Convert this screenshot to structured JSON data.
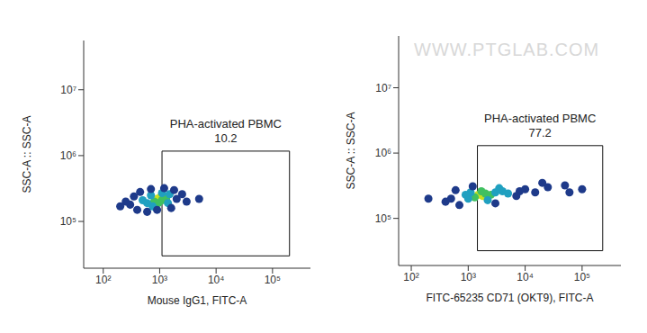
{
  "chart_data": [
    {
      "type": "scatter",
      "log": true,
      "xlabel": "Mouse IgG1, FITC-A",
      "ylabel": "SSC-A :: SSC-A",
      "xlim": [
        45,
        470000
      ],
      "ylim": [
        19500,
        56000000
      ],
      "xticks": [
        {
          "value": 100,
          "label": "10²"
        },
        {
          "value": 1000,
          "label": "10³"
        },
        {
          "value": 10000,
          "label": "10⁴"
        },
        {
          "value": 100000,
          "label": "10⁵"
        }
      ],
      "yticks": [
        {
          "value": 100000,
          "label": "10⁵"
        },
        {
          "value": 1000000,
          "label": "10⁶"
        },
        {
          "value": 10000000,
          "label": "10⁷"
        }
      ],
      "x": [
        900,
        1000,
        1100,
        800,
        1200,
        950,
        1300,
        600,
        700,
        1500,
        1400,
        750,
        1100,
        500,
        300,
        400,
        350,
        450,
        2000,
        2500,
        1800,
        600,
        900,
        1600,
        250,
        3000,
        1200,
        700,
        200,
        5000
      ],
      "values": [
        220000,
        230000,
        210000,
        200000,
        240000,
        190000,
        220000,
        190000,
        250000,
        260000,
        190000,
        170000,
        270000,
        210000,
        180000,
        150000,
        240000,
        280000,
        220000,
        260000,
        300000,
        140000,
        150000,
        160000,
        200000,
        200000,
        320000,
        310000,
        170000,
        220000
      ],
      "colors": [
        "#c8e020",
        "#c8e020",
        "#40c060",
        "#40c060",
        "#40c060",
        "#40c060",
        "#40c060",
        "#20a0c0",
        "#20a0c0",
        "#20a0c0",
        "#20a0c0",
        "#20a0c0",
        "#20a0c0",
        "#20a0c0",
        "#1e3a8a",
        "#1e3a8a",
        "#1e3a8a",
        "#1e3a8a",
        "#1e3a8a",
        "#1e3a8a",
        "#1e3a8a",
        "#1e3a8a",
        "#1e3a8a",
        "#1e3a8a",
        "#1e3a8a",
        "#1e3a8a",
        "#1e3a8a",
        "#1e3a8a",
        "#1e3a8a",
        "#1e3a8a"
      ],
      "gate": {
        "x": [
          1100,
          200000
        ],
        "y": [
          30000,
          1170000
        ],
        "label": "PHA-activated PBMC",
        "value": 10.2
      }
    },
    {
      "type": "scatter",
      "log": true,
      "xlabel": "FITC-65235 CD71 (OKT9), FITC-A",
      "ylabel": "SSC-A :: SSC-A",
      "xlim": [
        60,
        480000
      ],
      "ylim": [
        19000,
        62000000
      ],
      "xticks": [
        {
          "value": 100,
          "label": "10²"
        },
        {
          "value": 1000,
          "label": "10³"
        },
        {
          "value": 10000,
          "label": "10⁴"
        },
        {
          "value": 100000,
          "label": "10⁵"
        }
      ],
      "yticks": [
        {
          "value": 100000,
          "label": "10⁵"
        },
        {
          "value": 1000000,
          "label": "10⁶"
        },
        {
          "value": 10000000,
          "label": "10⁷"
        }
      ],
      "x": [
        1500,
        1800,
        2000,
        1300,
        2500,
        1700,
        1000,
        1100,
        3000,
        4000,
        900,
        2200,
        5000,
        3500,
        500,
        400,
        700,
        8000,
        10000,
        15000,
        25000,
        50000,
        100000,
        200,
        600,
        20000,
        7000,
        1200,
        3000,
        60000
      ],
      "values": [
        230000,
        220000,
        240000,
        210000,
        230000,
        260000,
        200000,
        250000,
        250000,
        260000,
        230000,
        190000,
        240000,
        290000,
        200000,
        180000,
        160000,
        260000,
        280000,
        250000,
        300000,
        320000,
        280000,
        200000,
        270000,
        350000,
        220000,
        310000,
        170000,
        250000
      ],
      "colors": [
        "#c8e020",
        "#c8e020",
        "#40c060",
        "#40c060",
        "#40c060",
        "#40c060",
        "#20a0c0",
        "#20a0c0",
        "#20a0c0",
        "#20a0c0",
        "#20a0c0",
        "#20a0c0",
        "#20a0c0",
        "#20a0c0",
        "#1e3a8a",
        "#1e3a8a",
        "#1e3a8a",
        "#1e3a8a",
        "#1e3a8a",
        "#1e3a8a",
        "#1e3a8a",
        "#1e3a8a",
        "#1e3a8a",
        "#1e3a8a",
        "#1e3a8a",
        "#1e3a8a",
        "#1e3a8a",
        "#1e3a8a",
        "#1e3a8a",
        "#1e3a8a"
      ],
      "gate": {
        "x": [
          1450,
          230000
        ],
        "y": [
          32000,
          1300000
        ],
        "label": "PHA-activated PBMC",
        "value": 77.2
      },
      "annotations": [
        "WWW.PTGLAB.COM"
      ]
    }
  ]
}
